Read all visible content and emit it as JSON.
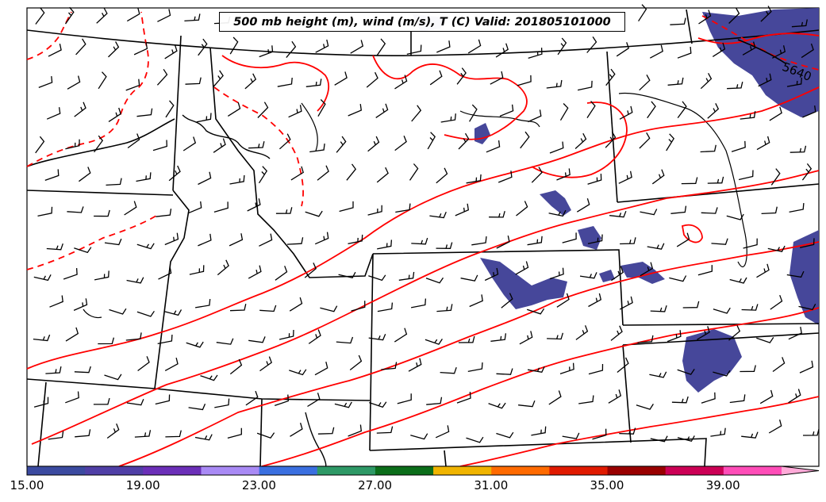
{
  "title": "500 mb height (m), wind (m/s), T (C) Valid: 201805101000",
  "height_contour_label": "5640",
  "colorbar": {
    "ticks": [
      "15.00",
      "19.00",
      "23.00",
      "27.00",
      "31.00",
      "35.00",
      "39.00"
    ],
    "colors": [
      "#3b4aa0",
      "#4f3fa6",
      "#6b2fb8",
      "#a98af5",
      "#3a6fe0",
      "#2e9966",
      "#0b6e1a",
      "#f0b400",
      "#ff6a00",
      "#e01a00",
      "#990000",
      "#cc0055",
      "#ff4db8",
      "#ffaad8"
    ]
  },
  "colors": {
    "temperature_contour": "#ff0000",
    "wind_shading": "#46479a",
    "boundaries": "#000000"
  }
}
